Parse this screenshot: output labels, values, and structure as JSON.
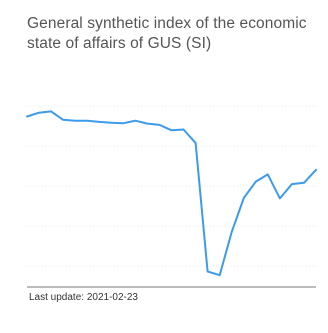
{
  "title": "General synthetic index of the economic state of affairs of GUS (SI)",
  "footer": {
    "last_update_label": "Last update:",
    "last_update_date": "2021-02-23"
  },
  "colors": {
    "line": "#3d9be9",
    "grid": "#d9d9d9",
    "axis": "#777777"
  },
  "chart_data": {
    "type": "line",
    "title": "General synthetic index of the economic state of affairs of GUS (SI)",
    "xlabel": "",
    "ylabel": "",
    "ylim": [
      60,
      105
    ],
    "grid": true,
    "series": [
      {
        "values": [
          100.6,
          101.5,
          101.8,
          99.8,
          99.6,
          99.6,
          99.3,
          99.1,
          99.0,
          99.6,
          98.9,
          98.6,
          97.3,
          97.5,
          94.3,
          63.7,
          62.8,
          73.1,
          81.2,
          85.1,
          86.8,
          81.1,
          84.5,
          84.8,
          87.9
        ]
      }
    ]
  }
}
